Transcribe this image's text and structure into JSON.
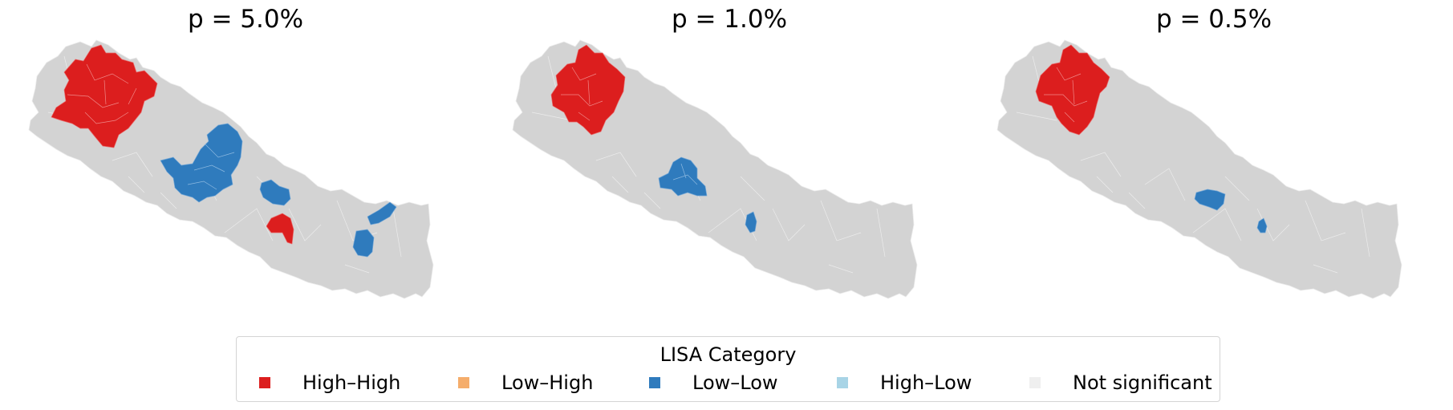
{
  "panels": [
    {
      "title": "p = 5.0%",
      "high_high": "large",
      "low_low": "several"
    },
    {
      "title": "p = 1.0%",
      "high_high": "medium",
      "low_low": "two"
    },
    {
      "title": "p = 0.5%",
      "high_high": "smaller",
      "low_low": "two-small"
    }
  ],
  "legend": {
    "title": "LISA Category",
    "items": [
      {
        "label": "High–High",
        "color": "#dc1e1e"
      },
      {
        "label": "Low–High",
        "color": "#f5ad6b"
      },
      {
        "label": "Low–Low",
        "color": "#2f7bbd"
      },
      {
        "label": "High–Low",
        "color": "#a8d4e6"
      },
      {
        "label": "Not significant",
        "color": "#efefef"
      }
    ]
  },
  "colors": {
    "not_significant_map": "#d3d3d3",
    "high_high": "#dc1e1e",
    "low_low": "#2f7bbd"
  }
}
